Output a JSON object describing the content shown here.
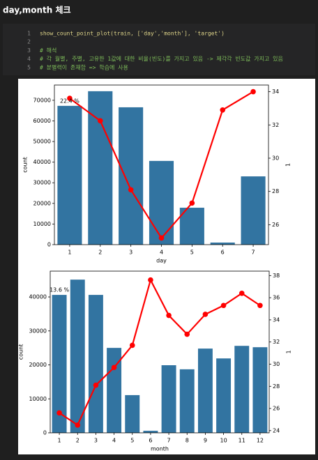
{
  "header": {
    "title": "day,month 체크"
  },
  "code": {
    "lines": [
      {
        "n": 1,
        "text": "show_count_point_plot(train, ['day','month'], 'target')"
      },
      {
        "n": 2
      },
      {
        "n": 3,
        "text": "# 해석"
      },
      {
        "n": 4,
        "text": "# 각 월별, 주별, 고유한 1값에 대한 비율(빈도)를 가지고 있음 -> 제각각 빈도값 가지고 있음"
      },
      {
        "n": 5,
        "text": "# 분별력이 존재함 => 학습에 사용"
      }
    ]
  },
  "chart_data": [
    {
      "type": "bar",
      "xlabel": "day",
      "ylabel": "count",
      "y2label": "1",
      "annotation": "22.4 %",
      "categories": [
        "1",
        "2",
        "3",
        "4",
        "5",
        "6",
        "7"
      ],
      "series": [
        {
          "color": "#3274a1",
          "values": [
            67300,
            74400,
            66600,
            40600,
            17900,
            1000,
            33100
          ]
        },
        {
          "color": "#ff0000",
          "type": "line",
          "axis": "y2",
          "values": [
            33.6,
            32.25,
            28.1,
            25.2,
            27.3,
            32.9,
            34.0
          ]
        }
      ],
      "ylim": [
        0,
        77400
      ],
      "yticks": [
        0,
        10000,
        20000,
        30000,
        40000,
        50000,
        60000,
        70000
      ],
      "y2lim": [
        24.8,
        34.4
      ],
      "y2ticks": [
        26,
        28,
        30,
        32,
        34
      ]
    },
    {
      "type": "bar",
      "xlabel": "month",
      "ylabel": "count",
      "y2label": "1",
      "annotation": "13.6 %",
      "categories": [
        "1",
        "2",
        "3",
        "4",
        "5",
        "6",
        "7",
        "8",
        "9",
        "10",
        "11",
        "12"
      ],
      "series": [
        {
          "color": "#3274a1",
          "values": [
            40600,
            45100,
            40600,
            25000,
            11100,
            600,
            19900,
            18700,
            24800,
            21900,
            25600,
            25200
          ]
        },
        {
          "color": "#ff0000",
          "type": "line",
          "axis": "y2",
          "values": [
            25.6,
            24.5,
            28.1,
            29.7,
            31.7,
            37.6,
            34.4,
            32.7,
            34.5,
            35.3,
            36.4,
            35.3
          ]
        }
      ],
      "ylim": [
        0,
        47600
      ],
      "yticks": [
        0,
        10000,
        20000,
        30000,
        40000
      ],
      "y2lim": [
        23.8,
        38.4
      ],
      "y2ticks": [
        24,
        26,
        28,
        30,
        32,
        34,
        36,
        38
      ]
    }
  ]
}
